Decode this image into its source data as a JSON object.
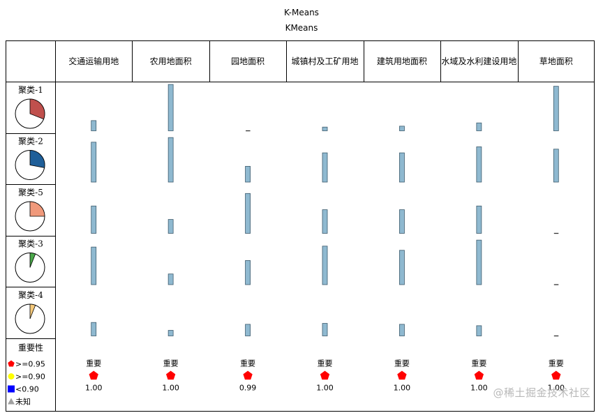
{
  "title": "K-Means",
  "subtitle": "KMeans",
  "watermark": "@稀土掘金技术社区",
  "chart_data": {
    "type": "bar",
    "categories": [
      "交通运输用地",
      "农用地面积",
      "园地面积",
      "城镇村及工矿用地",
      "建筑用地面积",
      "水域及水利建设用地",
      "草地面积"
    ],
    "clusters": [
      {
        "label": "聚类-1",
        "size": 0.31,
        "color": "#c0504d",
        "values": [
          0.22,
          1.0,
          0.02,
          0.08,
          0.1,
          0.17,
          0.96
        ]
      },
      {
        "label": "聚类-2",
        "size": 0.28,
        "color": "#1f5f99",
        "values": [
          0.86,
          0.96,
          0.34,
          0.63,
          0.63,
          0.76,
          0.71
        ]
      },
      {
        "label": "聚类-5",
        "size": 0.25,
        "color": "#f0997b",
        "values": [
          0.59,
          0.3,
          0.86,
          0.51,
          0.51,
          0.59,
          0.04
        ]
      },
      {
        "label": "聚类-3",
        "size": 0.06,
        "color": "#4aa84a",
        "values": [
          0.81,
          0.23,
          0.52,
          0.83,
          0.74,
          0.96,
          0.03
        ]
      },
      {
        "label": "聚类-4",
        "size": 0.06,
        "color": "#f5c97a",
        "values": [
          0.29,
          0.12,
          0.25,
          0.27,
          0.25,
          0.22,
          0.03
        ]
      }
    ],
    "importance_label": "重要",
    "importance": [
      1.0,
      1.0,
      0.99,
      1.0,
      1.0,
      1.0,
      1.0
    ],
    "importance_text": [
      "1.00",
      "1.00",
      "0.99",
      "1.00",
      "1.00",
      "1.00",
      "1.00"
    ],
    "legend": {
      "title": "重要性",
      "items": [
        {
          "label": ">=0.95",
          "color": "#ff0000",
          "shape": "pentagon"
        },
        {
          "label": ">=0.90",
          "color": "#ffff00",
          "shape": "circle"
        },
        {
          "label": "<0.90",
          "color": "#0000ff",
          "shape": "square"
        },
        {
          "label": "未知",
          "color": "#a0a0a0",
          "shape": "triangle"
        }
      ]
    },
    "bar_color": "#8fb9d0"
  }
}
